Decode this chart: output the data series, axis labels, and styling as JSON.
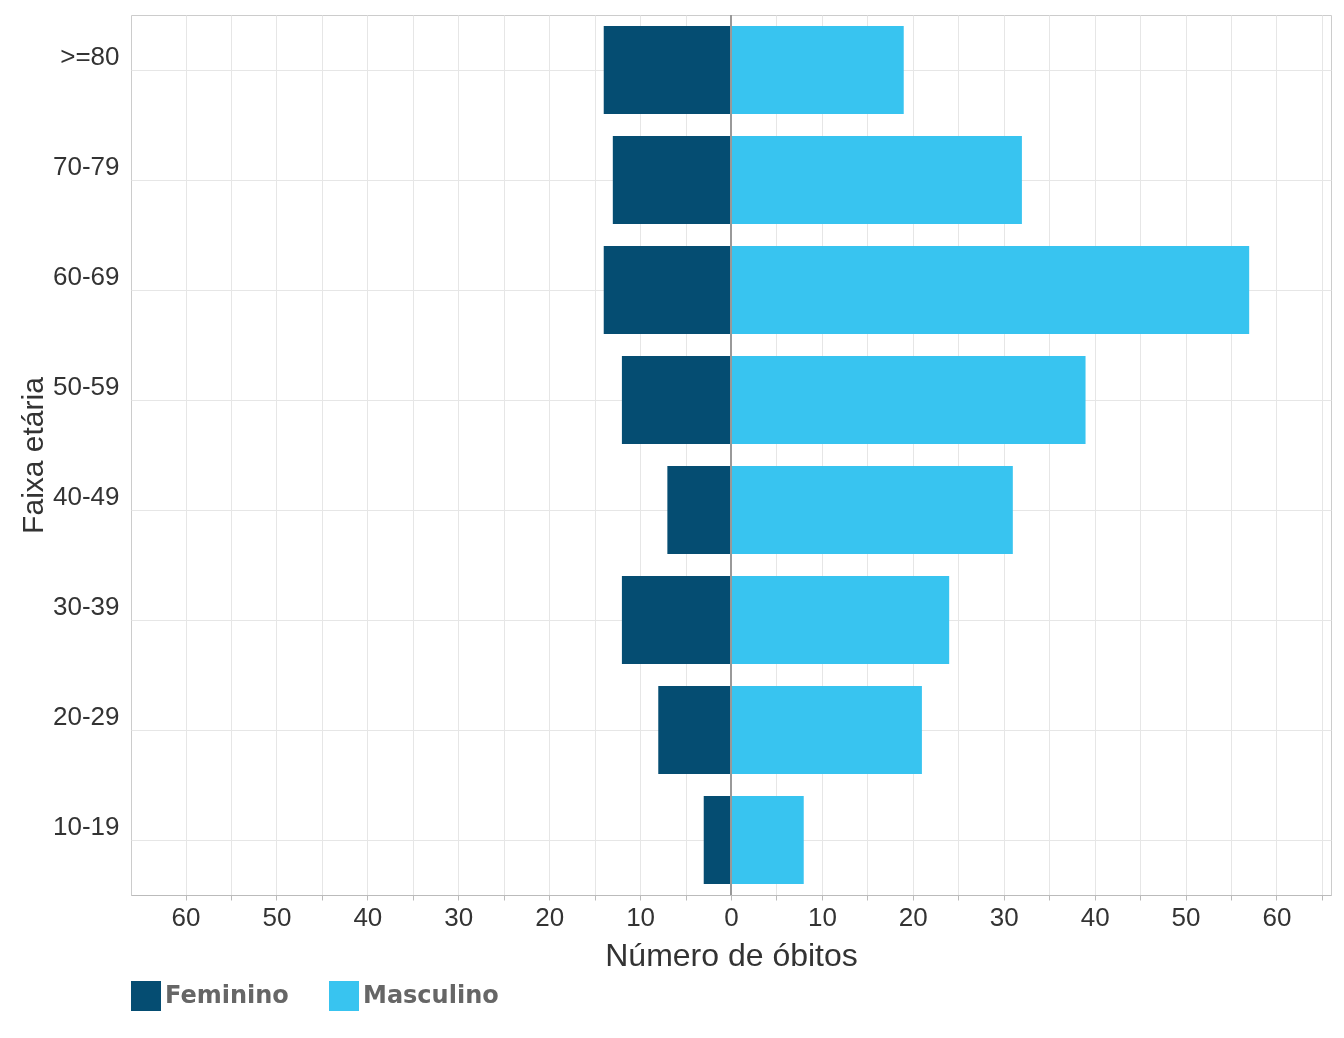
{
  "chart_data": {
    "type": "bar",
    "orientation": "horizontal",
    "stacked": true,
    "categories": [
      ">=80",
      "70-79",
      "60-69",
      "50-59",
      "40-49",
      "30-39",
      "20-29",
      "10-19"
    ],
    "series": [
      {
        "name": "Feminino",
        "color": "#054d72",
        "values": [
          -14,
          -13,
          -14,
          -12,
          -7,
          -12,
          -8,
          -3
        ]
      },
      {
        "name": "Masculino",
        "color": "#38c4f0",
        "values": [
          19,
          32,
          57,
          39,
          31,
          24,
          21,
          8
        ]
      }
    ],
    "xlabel": "Número de óbitos",
    "ylabel": "Faixa etária",
    "xlim": [
      -66,
      66
    ],
    "xticks": [
      {
        "value": -60,
        "label": "60"
      },
      {
        "value": -55,
        "label": null
      },
      {
        "value": -50,
        "label": "50"
      },
      {
        "value": -45,
        "label": null
      },
      {
        "value": -40,
        "label": "40"
      },
      {
        "value": -35,
        "label": null
      },
      {
        "value": -30,
        "label": "30"
      },
      {
        "value": -25,
        "label": null
      },
      {
        "value": -20,
        "label": "20"
      },
      {
        "value": -15,
        "label": null
      },
      {
        "value": -10,
        "label": "10"
      },
      {
        "value": -5,
        "label": null
      },
      0,
      {
        "value": 5,
        "label": null
      },
      10,
      {
        "value": 15,
        "label": null
      },
      20,
      {
        "value": 25,
        "label": null
      },
      30,
      {
        "value": 35,
        "label": null
      },
      40,
      {
        "value": 45,
        "label": null
      },
      50,
      {
        "value": 55,
        "label": null
      },
      60,
      {
        "value": 65,
        "label": null
      }
    ],
    "ref_lines": [
      {
        "axis": "x",
        "value": 0,
        "color": "#999999"
      }
    ],
    "grid": true,
    "legend": "bottom left"
  }
}
